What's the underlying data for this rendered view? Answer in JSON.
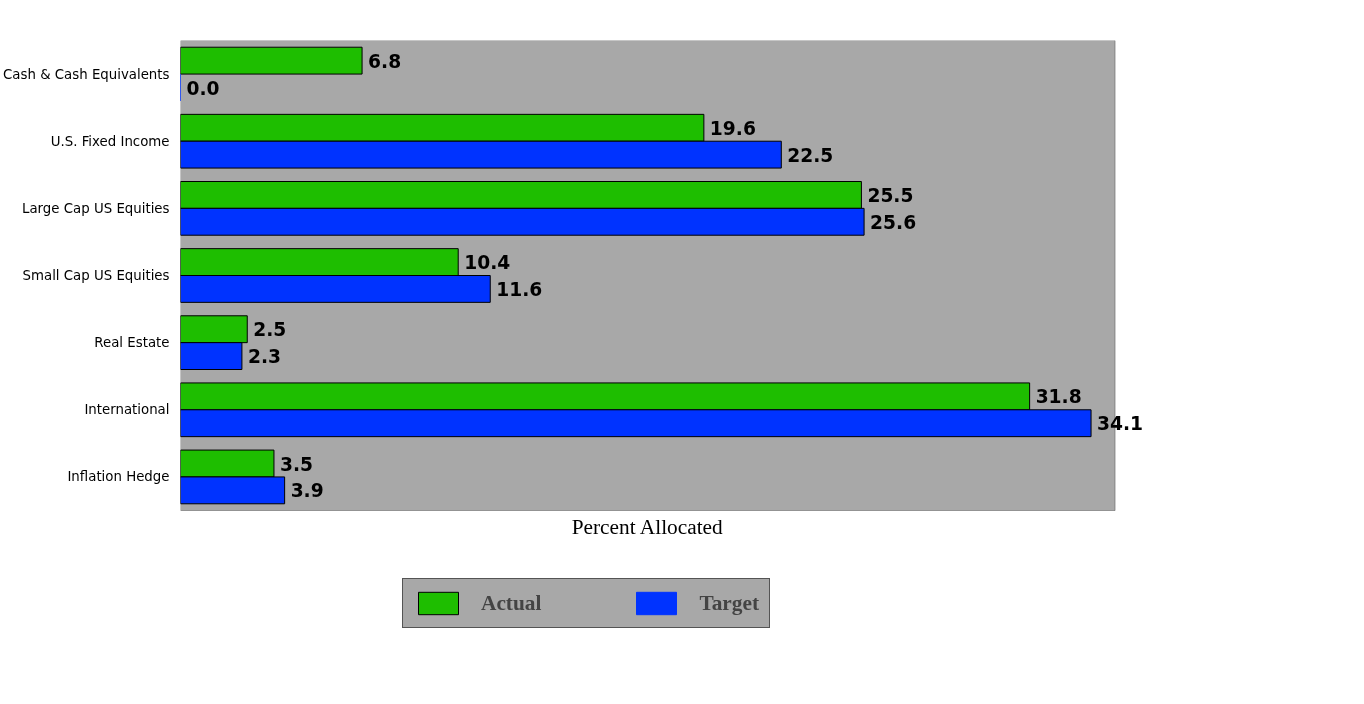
{
  "chart_data": {
    "type": "bar",
    "orientation": "horizontal",
    "xlabel": "Percent Allocated",
    "categories": [
      "Cash & Cash Equivalents",
      "U.S. Fixed Income",
      "Large Cap US Equities",
      "Small Cap US Equities",
      "Real Estate",
      "International",
      "Inflation Hedge"
    ],
    "series": [
      {
        "name": "Actual",
        "color": "#1ebe00",
        "values": [
          6.8,
          19.6,
          25.5,
          10.4,
          2.5,
          31.8,
          3.5
        ],
        "value_labels": [
          "6.8",
          "19.6",
          "25.5",
          "10.4",
          "2.5",
          "31.8",
          "3.5"
        ]
      },
      {
        "name": "Target",
        "color": "#0033ff",
        "values": [
          0.0,
          22.5,
          25.6,
          11.6,
          2.3,
          34.1,
          3.9
        ],
        "value_labels": [
          "0.0",
          "22.5",
          "25.6",
          "11.6",
          "2.3",
          "34.1",
          "3.9"
        ]
      }
    ],
    "xlim": [
      0,
      35
    ],
    "tick_labels": "y",
    "grid": false,
    "legend": "bottom"
  }
}
